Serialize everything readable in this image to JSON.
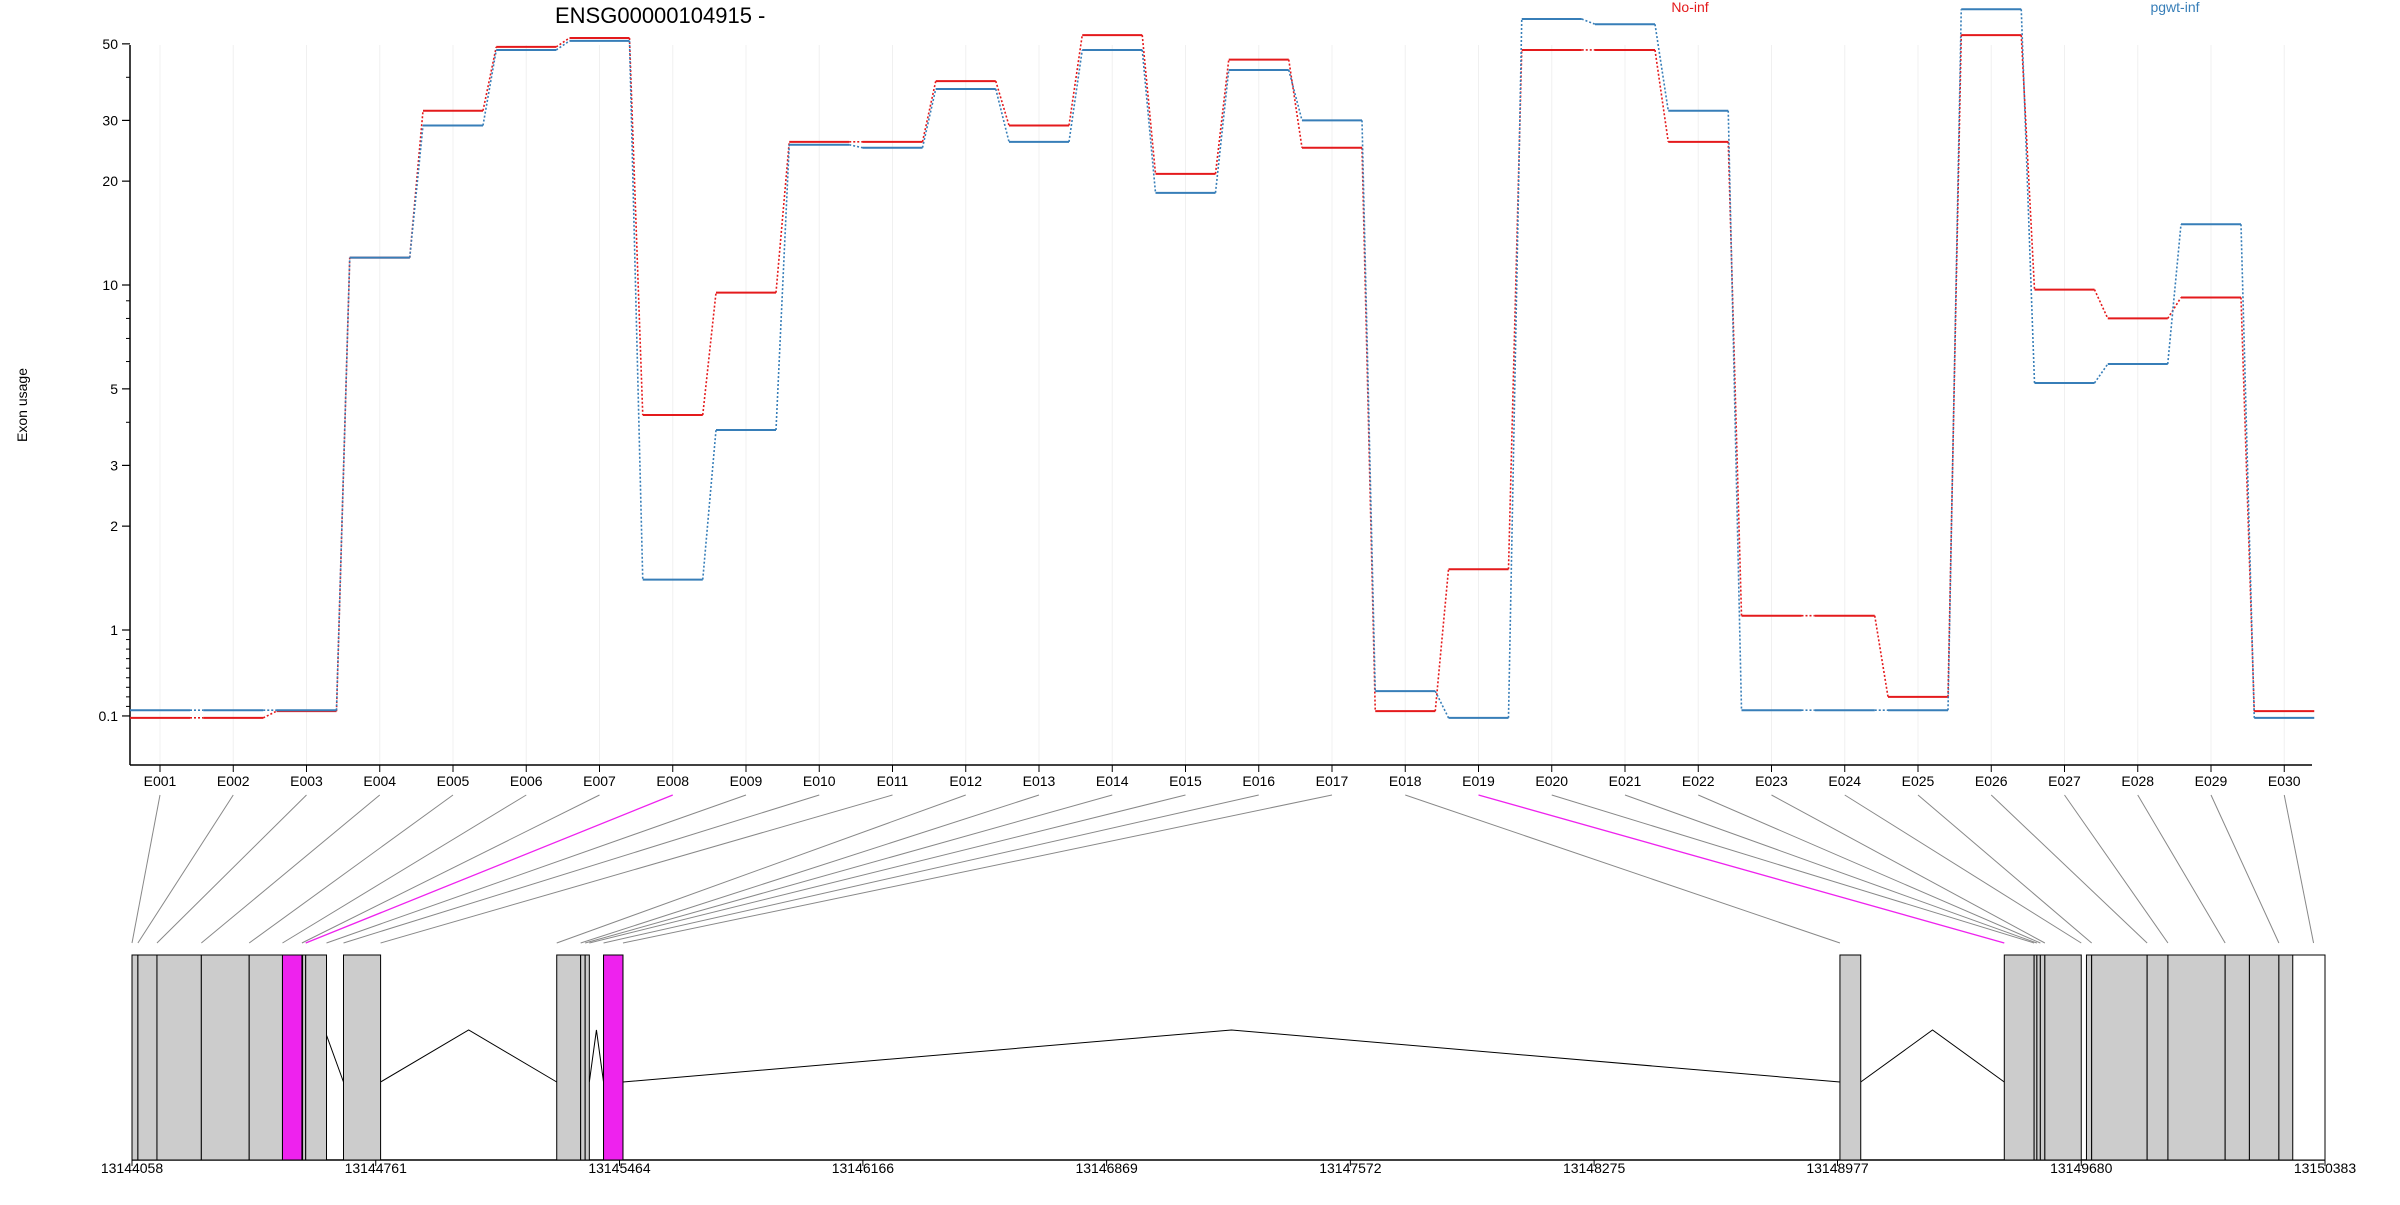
{
  "chart_data": {
    "type": "line",
    "title": "ENSG00000104915 -",
    "ylabel": "Exon usage",
    "xlabel": "",
    "y_scale": "log",
    "y_ticks": [
      0.1,
      1,
      2,
      3,
      5,
      10,
      20,
      30,
      50
    ],
    "y_tick_labels": [
      "0.1",
      "1",
      "2",
      "3",
      "5",
      "10",
      "20",
      "30",
      "50"
    ],
    "grid": "vertical light lines at each exon",
    "legend_position": "top",
    "categories": [
      "E001",
      "E002",
      "E003",
      "E004",
      "E005",
      "E006",
      "E007",
      "E008",
      "E009",
      "E010",
      "E011",
      "E012",
      "E013",
      "E014",
      "E015",
      "E016",
      "E017",
      "E018",
      "E019",
      "E020",
      "E021",
      "E022",
      "E023",
      "E024",
      "E025",
      "E026",
      "E027",
      "E028",
      "E029",
      "E030"
    ],
    "series": [
      {
        "name": "No-inf",
        "color": "#e41a1c",
        "values": [
          0.08,
          0.08,
          0.15,
          12,
          32,
          49,
          52,
          4.2,
          9.5,
          26,
          26,
          39,
          29,
          53,
          21,
          45,
          25,
          0.15,
          1.5,
          48,
          48,
          26,
          1.1,
          1.1,
          0.3,
          53,
          9.7,
          8,
          9.2,
          0.15
        ]
      },
      {
        "name": "pgwt-inf",
        "color": "#377eb8",
        "values": [
          0.16,
          0.16,
          0.16,
          12,
          29,
          48,
          51,
          1.4,
          3.8,
          25.5,
          25,
          37,
          26,
          48,
          18.5,
          42,
          30,
          0.36,
          0.08,
          59,
          57,
          32,
          0.16,
          0.16,
          0.16,
          63,
          5.2,
          5.9,
          15,
          0.08
        ]
      }
    ],
    "highlighted_exons": [
      "E008",
      "E019"
    ],
    "highlight_color": "#ee22ee",
    "gene_model": {
      "coordinate_ticks": [
        "13144058",
        "13144761",
        "13145464",
        "13146166",
        "13146869",
        "13147572",
        "13148275",
        "13148977",
        "13149680",
        "13150383"
      ],
      "range": [
        13144058,
        13150383
      ]
    }
  }
}
